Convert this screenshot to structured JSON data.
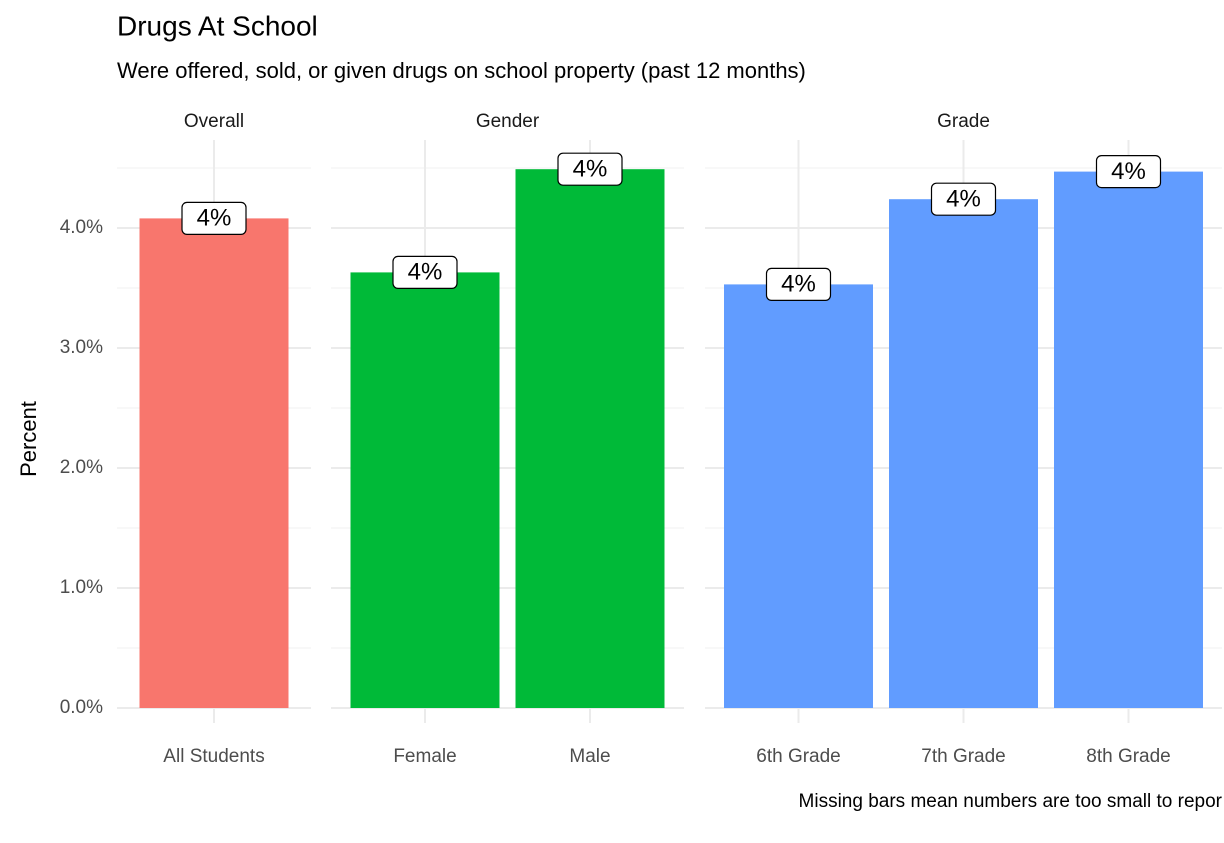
{
  "chart_data": {
    "type": "bar",
    "title": "Drugs At School",
    "subtitle": "Were offered, sold, or given drugs on school property (past 12 months)",
    "ylabel": "Percent",
    "xlabel": "",
    "ylim": [
      0,
      4.6
    ],
    "yticks": [
      {
        "value": 0,
        "label": "0.0%"
      },
      {
        "value": 1,
        "label": "1.0%"
      },
      {
        "value": 2,
        "label": "2.0%"
      },
      {
        "value": 3,
        "label": "3.0%"
      },
      {
        "value": 4,
        "label": "4.0%"
      }
    ],
    "grid": true,
    "legend": "none",
    "caption": "Missing bars mean numbers are too small to repor",
    "facets": [
      {
        "name": "Overall",
        "color": "#F8766D",
        "categories": [
          "All Students"
        ],
        "values": [
          4.08
        ],
        "labels": [
          "4%"
        ]
      },
      {
        "name": "Gender",
        "color": "#00BA38",
        "categories": [
          "Female",
          "Male"
        ],
        "values": [
          3.63,
          4.49
        ],
        "labels": [
          "4%",
          "4%"
        ]
      },
      {
        "name": "Grade",
        "color": "#619CFF",
        "categories": [
          "6th Grade",
          "7th Grade",
          "8th Grade"
        ],
        "values": [
          3.53,
          4.24,
          4.47
        ],
        "labels": [
          "4%",
          "4%",
          "4%"
        ]
      }
    ]
  }
}
